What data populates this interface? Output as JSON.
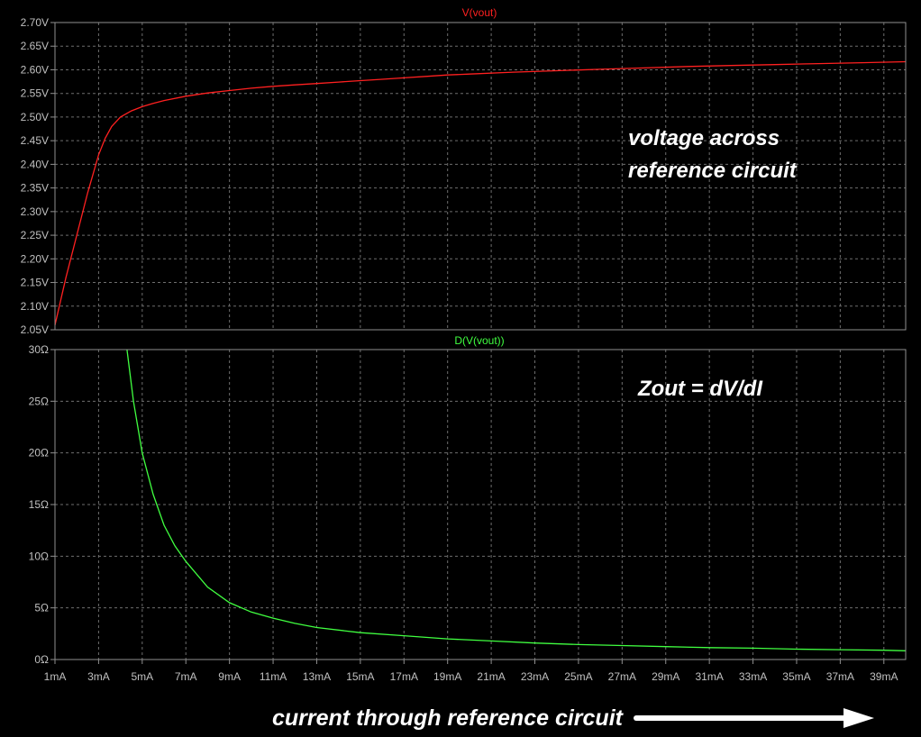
{
  "chart_data": [
    {
      "type": "line",
      "title": "V(vout)",
      "title_color": "#ff2020",
      "line_color": "#ff2020",
      "xlim": [
        1,
        40
      ],
      "ylim": [
        2.05,
        2.7
      ],
      "x_tick_values": [
        1,
        3,
        5,
        7,
        9,
        11,
        13,
        15,
        17,
        19,
        21,
        23,
        25,
        27,
        29,
        31,
        33,
        35,
        37,
        39
      ],
      "y_tick_labels": [
        "2.70V",
        "2.65V",
        "2.60V",
        "2.55V",
        "2.50V",
        "2.45V",
        "2.40V",
        "2.35V",
        "2.30V",
        "2.25V",
        "2.20V",
        "2.15V",
        "2.10V",
        "2.05V"
      ],
      "y_tick_values": [
        2.7,
        2.65,
        2.6,
        2.55,
        2.5,
        2.45,
        2.4,
        2.35,
        2.3,
        2.25,
        2.2,
        2.15,
        2.1,
        2.05
      ],
      "annotation": [
        "voltage across",
        "reference circuit"
      ],
      "grid": true,
      "series": [
        {
          "x": [
            1.0,
            1.5,
            2.0,
            2.5,
            3.0,
            3.3,
            3.6,
            4.0,
            4.5,
            5.0,
            5.5,
            6.0,
            7.0,
            8.0,
            9.0,
            10,
            11,
            12,
            13,
            14,
            15,
            16,
            17,
            18,
            19,
            20,
            22,
            24,
            26,
            28,
            30,
            32,
            34,
            36,
            38,
            40
          ],
          "y": [
            2.06,
            2.16,
            2.25,
            2.34,
            2.42,
            2.455,
            2.48,
            2.5,
            2.513,
            2.522,
            2.529,
            2.535,
            2.544,
            2.551,
            2.556,
            2.561,
            2.565,
            2.568,
            2.571,
            2.574,
            2.577,
            2.58,
            2.583,
            2.586,
            2.589,
            2.591,
            2.595,
            2.598,
            2.601,
            2.604,
            2.607,
            2.609,
            2.611,
            2.613,
            2.615,
            2.617
          ]
        }
      ]
    },
    {
      "type": "line",
      "title": "D(V(vout))",
      "title_color": "#40ff40",
      "line_color": "#40ff40",
      "xlim": [
        1,
        40
      ],
      "ylim": [
        0,
        30
      ],
      "x_tick_values": [
        1,
        3,
        5,
        7,
        9,
        11,
        13,
        15,
        17,
        19,
        21,
        23,
        25,
        27,
        29,
        31,
        33,
        35,
        37,
        39
      ],
      "x_tick_labels": [
        "1mA",
        "3mA",
        "5mA",
        "7mA",
        "9mA",
        "11mA",
        "13mA",
        "15mA",
        "17mA",
        "19mA",
        "21mA",
        "23mA",
        "25mA",
        "27mA",
        "29mA",
        "31mA",
        "33mA",
        "35mA",
        "37mA",
        "39mA"
      ],
      "y_tick_labels": [
        "30Ω",
        "25Ω",
        "20Ω",
        "15Ω",
        "10Ω",
        "5Ω",
        "0Ω"
      ],
      "y_tick_values": [
        30,
        25,
        20,
        15,
        10,
        5,
        0
      ],
      "annotation": [
        "Zout = dV/dI"
      ],
      "grid": true,
      "series": [
        {
          "x": [
            4.3,
            4.6,
            5.0,
            5.5,
            6.0,
            6.5,
            7.0,
            8.0,
            9.0,
            10,
            11,
            12,
            13,
            15,
            17,
            19,
            21,
            23,
            25,
            27,
            29,
            31,
            33,
            35,
            37,
            39,
            40
          ],
          "y": [
            30,
            25,
            20,
            16,
            13,
            11,
            9.5,
            7.0,
            5.5,
            4.6,
            4.0,
            3.5,
            3.1,
            2.6,
            2.3,
            2.0,
            1.8,
            1.6,
            1.45,
            1.35,
            1.25,
            1.15,
            1.1,
            1.0,
            0.95,
            0.9,
            0.85
          ]
        }
      ]
    }
  ],
  "x_axis_title": "current through reference circuit",
  "colors": {
    "background": "#000000",
    "grid": "#6e6e6e",
    "frame": "#909090",
    "tick_text": "#c0c0c0",
    "annotation_text": "#ffffff",
    "arrow": "#ffffff"
  }
}
